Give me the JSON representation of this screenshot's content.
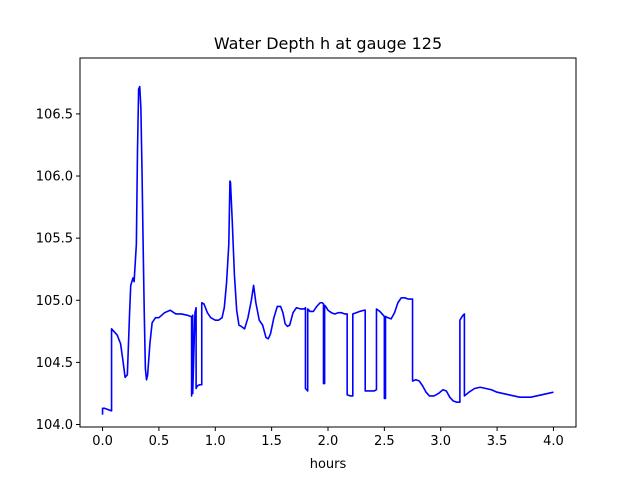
{
  "chart_data": {
    "type": "line",
    "title": "Water Depth h at gauge 125",
    "xlabel": "hours",
    "ylabel": "",
    "xlim": [
      -0.2,
      4.2
    ],
    "ylim": [
      103.98,
      106.95
    ],
    "xticks": [
      0.0,
      0.5,
      1.0,
      1.5,
      2.0,
      2.5,
      3.0,
      3.5,
      4.0
    ],
    "xtick_labels": [
      "0.0",
      "0.5",
      "1.0",
      "1.5",
      "2.0",
      "2.5",
      "3.0",
      "3.5",
      "4.0"
    ],
    "yticks": [
      104.0,
      104.5,
      105.0,
      105.5,
      106.0,
      106.5
    ],
    "ytick_labels": [
      "104.0",
      "104.5",
      "105.0",
      "105.5",
      "106.0",
      "106.5"
    ],
    "grid": false,
    "series": [
      {
        "color": "#0000ff",
        "x": [
          0.0,
          0.0,
          0.02,
          0.05,
          0.08,
          0.08,
          0.1,
          0.13,
          0.16,
          0.18,
          0.2,
          0.22,
          0.24,
          0.25,
          0.27,
          0.28,
          0.3,
          0.31,
          0.32,
          0.33,
          0.34,
          0.35,
          0.36,
          0.37,
          0.38,
          0.39,
          0.4,
          0.42,
          0.44,
          0.47,
          0.5,
          0.55,
          0.6,
          0.65,
          0.7,
          0.75,
          0.78,
          0.79,
          0.79,
          0.8,
          0.8,
          0.82,
          0.83,
          0.83,
          0.84,
          0.86,
          0.88,
          0.88,
          0.9,
          0.93,
          0.96,
          1.0,
          1.03,
          1.06,
          1.08,
          1.1,
          1.12,
          1.13,
          1.135,
          1.15,
          1.17,
          1.19,
          1.21,
          1.23,
          1.26,
          1.29,
          1.32,
          1.34,
          1.36,
          1.39,
          1.42,
          1.45,
          1.47,
          1.49,
          1.52,
          1.55,
          1.58,
          1.6,
          1.62,
          1.64,
          1.66,
          1.69,
          1.72,
          1.76,
          1.79,
          1.8,
          1.8,
          1.82,
          1.82,
          1.84,
          1.87,
          1.9,
          1.93,
          1.95,
          1.96,
          1.96,
          1.97,
          1.97,
          1.98,
          2.0,
          2.03,
          2.06,
          2.09,
          2.12,
          2.15,
          2.17,
          2.17,
          2.2,
          2.22,
          2.22,
          2.25,
          2.28,
          2.32,
          2.33,
          2.33,
          2.37,
          2.41,
          2.43,
          2.43,
          2.46,
          2.49,
          2.5,
          2.5,
          2.51,
          2.51,
          2.53,
          2.56,
          2.59,
          2.62,
          2.65,
          2.68,
          2.71,
          2.73,
          2.75,
          2.75,
          2.78,
          2.81,
          2.84,
          2.87,
          2.9,
          2.94,
          2.98,
          3.02,
          3.05,
          3.08,
          3.11,
          3.14,
          3.17,
          3.17,
          3.19,
          3.21,
          3.21,
          3.25,
          3.3,
          3.35,
          3.4,
          3.45,
          3.5,
          3.55,
          3.6,
          3.65,
          3.7,
          3.75,
          3.8,
          3.85,
          3.9,
          3.95,
          4.0
        ],
        "y": [
          104.08,
          104.13,
          104.13,
          104.12,
          104.11,
          104.77,
          104.75,
          104.72,
          104.65,
          104.52,
          104.38,
          104.4,
          104.9,
          105.12,
          105.18,
          105.15,
          105.45,
          106.2,
          106.7,
          106.72,
          106.55,
          106.05,
          105.45,
          104.9,
          104.45,
          104.36,
          104.4,
          104.65,
          104.82,
          104.86,
          104.86,
          104.9,
          104.92,
          104.89,
          104.89,
          104.88,
          104.87,
          104.87,
          104.23,
          104.88,
          104.25,
          104.9,
          104.94,
          104.29,
          104.31,
          104.32,
          104.32,
          104.98,
          104.97,
          104.9,
          104.86,
          104.84,
          104.84,
          104.86,
          104.94,
          105.14,
          105.45,
          105.96,
          105.95,
          105.65,
          105.2,
          104.92,
          104.8,
          104.79,
          104.77,
          104.86,
          105.0,
          105.12,
          104.98,
          104.84,
          104.8,
          104.7,
          104.69,
          104.73,
          104.86,
          104.95,
          104.95,
          104.9,
          104.81,
          104.79,
          104.8,
          104.9,
          104.94,
          104.93,
          104.93,
          104.94,
          104.29,
          104.27,
          104.93,
          104.91,
          104.91,
          104.95,
          104.98,
          104.98,
          104.97,
          104.33,
          104.33,
          104.96,
          104.95,
          104.92,
          104.9,
          104.89,
          104.9,
          104.9,
          104.89,
          104.89,
          104.24,
          104.23,
          104.23,
          104.89,
          104.9,
          104.91,
          104.92,
          104.92,
          104.27,
          104.27,
          104.27,
          104.28,
          104.93,
          104.91,
          104.88,
          104.87,
          104.21,
          104.21,
          104.87,
          104.86,
          104.85,
          104.9,
          104.98,
          105.02,
          105.02,
          105.01,
          105.01,
          105.01,
          104.35,
          104.36,
          104.35,
          104.31,
          104.26,
          104.23,
          104.23,
          104.25,
          104.28,
          104.27,
          104.22,
          104.19,
          104.18,
          104.18,
          104.84,
          104.87,
          104.89,
          104.23,
          104.26,
          104.29,
          104.3,
          104.29,
          104.28,
          104.26,
          104.25,
          104.24,
          104.23,
          104.22,
          104.22,
          104.22,
          104.23,
          104.24,
          104.25,
          104.26
        ]
      }
    ]
  }
}
